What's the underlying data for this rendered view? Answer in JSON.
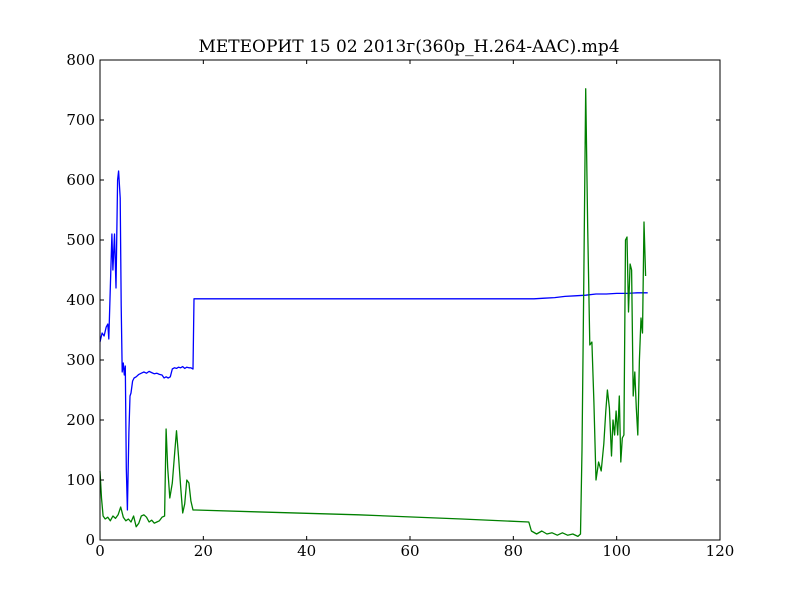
{
  "chart_data": {
    "type": "line",
    "title": "МЕТЕОРИТ 15 02 2013г(360p_H.264-AAC).mp4",
    "xlabel": "",
    "ylabel": "",
    "xlim": [
      0,
      120
    ],
    "ylim": [
      0,
      800
    ],
    "x_ticks": [
      "0",
      "20",
      "40",
      "60",
      "80",
      "100",
      "120"
    ],
    "y_ticks": [
      "0",
      "100",
      "200",
      "300",
      "400",
      "500",
      "600",
      "700",
      "800"
    ],
    "grid": false,
    "legend": "none",
    "series": [
      {
        "color": "#0000ff",
        "points": [
          [
            0,
            330
          ],
          [
            0.4,
            345
          ],
          [
            0.8,
            340
          ],
          [
            1.2,
            355
          ],
          [
            1.5,
            360
          ],
          [
            1.7,
            335
          ],
          [
            2.0,
            420
          ],
          [
            2.3,
            510
          ],
          [
            2.5,
            450
          ],
          [
            2.8,
            510
          ],
          [
            3.1,
            420
          ],
          [
            3.4,
            600
          ],
          [
            3.6,
            615
          ],
          [
            3.9,
            570
          ],
          [
            4.1,
            390
          ],
          [
            4.3,
            280
          ],
          [
            4.5,
            295
          ],
          [
            4.7,
            275
          ],
          [
            4.9,
            290
          ],
          [
            5.1,
            120
          ],
          [
            5.3,
            50
          ],
          [
            5.6,
            180
          ],
          [
            5.8,
            240
          ],
          [
            6.0,
            245
          ],
          [
            6.3,
            265
          ],
          [
            6.6,
            270
          ],
          [
            7,
            272
          ],
          [
            7.5,
            276
          ],
          [
            8,
            278
          ],
          [
            8.5,
            280
          ],
          [
            9,
            278
          ],
          [
            9.5,
            281
          ],
          [
            10,
            279
          ],
          [
            10.5,
            277
          ],
          [
            11,
            278
          ],
          [
            11.5,
            276
          ],
          [
            12,
            275
          ],
          [
            12.4,
            270
          ],
          [
            12.8,
            272
          ],
          [
            13.2,
            270
          ],
          [
            13.6,
            272
          ],
          [
            14.0,
            285
          ],
          [
            14.4,
            287
          ],
          [
            14.8,
            286
          ],
          [
            15.2,
            288
          ],
          [
            15.6,
            287
          ],
          [
            16,
            289
          ],
          [
            16.4,
            286
          ],
          [
            16.8,
            288
          ],
          [
            17.2,
            287
          ],
          [
            17.6,
            287
          ],
          [
            18.0,
            285
          ],
          [
            18.2,
            402
          ],
          [
            25,
            402
          ],
          [
            40,
            402
          ],
          [
            60,
            402
          ],
          [
            70,
            402
          ],
          [
            80,
            402
          ],
          [
            84,
            402
          ],
          [
            86,
            403
          ],
          [
            88,
            404
          ],
          [
            90,
            406
          ],
          [
            92,
            407
          ],
          [
            94,
            408
          ],
          [
            96,
            410
          ],
          [
            98,
            410
          ],
          [
            100,
            411
          ],
          [
            102,
            411
          ],
          [
            104,
            412
          ],
          [
            106,
            412
          ]
        ]
      },
      {
        "color": "#008000",
        "points": [
          [
            0,
            115
          ],
          [
            0.3,
            70
          ],
          [
            0.6,
            40
          ],
          [
            1,
            35
          ],
          [
            1.5,
            38
          ],
          [
            2,
            32
          ],
          [
            2.5,
            40
          ],
          [
            3,
            36
          ],
          [
            3.5,
            42
          ],
          [
            4,
            55
          ],
          [
            4.5,
            38
          ],
          [
            5,
            32
          ],
          [
            5.5,
            35
          ],
          [
            6,
            30
          ],
          [
            6.5,
            40
          ],
          [
            7,
            22
          ],
          [
            7.5,
            28
          ],
          [
            8,
            40
          ],
          [
            8.5,
            42
          ],
          [
            9,
            38
          ],
          [
            9.5,
            30
          ],
          [
            10,
            33
          ],
          [
            10.5,
            28
          ],
          [
            11,
            30
          ],
          [
            11.5,
            32
          ],
          [
            12,
            38
          ],
          [
            12.5,
            40
          ],
          [
            12.8,
            185
          ],
          [
            13.1,
            120
          ],
          [
            13.5,
            70
          ],
          [
            14,
            95
          ],
          [
            14.5,
            150
          ],
          [
            14.8,
            182
          ],
          [
            15.2,
            140
          ],
          [
            15.6,
            90
          ],
          [
            16,
            45
          ],
          [
            16.4,
            60
          ],
          [
            16.8,
            100
          ],
          [
            17.2,
            95
          ],
          [
            17.6,
            65
          ],
          [
            18,
            50
          ],
          [
            18.5,
            50
          ],
          [
            30,
            47
          ],
          [
            50,
            42
          ],
          [
            70,
            35
          ],
          [
            83,
            30
          ],
          [
            83.5,
            15
          ],
          [
            84.5,
            10
          ],
          [
            85.5,
            15
          ],
          [
            86.5,
            10
          ],
          [
            87.5,
            12
          ],
          [
            88.5,
            8
          ],
          [
            89.5,
            12
          ],
          [
            90.5,
            8
          ],
          [
            91.5,
            10
          ],
          [
            92.5,
            6
          ],
          [
            93,
            10
          ],
          [
            93.3,
            150
          ],
          [
            93.6,
            400
          ],
          [
            94.0,
            752
          ],
          [
            94.4,
            520
          ],
          [
            94.8,
            325
          ],
          [
            95.2,
            330
          ],
          [
            95.6,
            230
          ],
          [
            96.0,
            100
          ],
          [
            96.5,
            130
          ],
          [
            97.0,
            115
          ],
          [
            97.5,
            160
          ],
          [
            97.9,
            215
          ],
          [
            98.2,
            250
          ],
          [
            98.6,
            220
          ],
          [
            99.0,
            140
          ],
          [
            99.3,
            200
          ],
          [
            99.6,
            175
          ],
          [
            99.9,
            215
          ],
          [
            100.2,
            175
          ],
          [
            100.5,
            240
          ],
          [
            100.8,
            130
          ],
          [
            101.1,
            170
          ],
          [
            101.4,
            175
          ],
          [
            101.7,
            500
          ],
          [
            102.0,
            505
          ],
          [
            102.3,
            380
          ],
          [
            102.6,
            460
          ],
          [
            102.9,
            450
          ],
          [
            103.2,
            240
          ],
          [
            103.5,
            280
          ],
          [
            103.8,
            220
          ],
          [
            104.1,
            175
          ],
          [
            104.4,
            300
          ],
          [
            104.7,
            370
          ],
          [
            105.0,
            345
          ],
          [
            105.3,
            530
          ],
          [
            105.6,
            440
          ]
        ]
      }
    ]
  }
}
